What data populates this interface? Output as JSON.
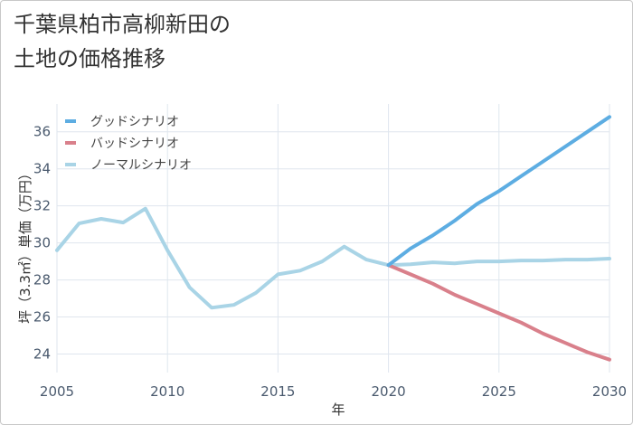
{
  "page": {
    "title_line1": "千葉県柏市高柳新田の",
    "title_line2": "土地の価格推移"
  },
  "chart_data": {
    "type": "line",
    "title": "千葉県柏市高柳新田の土地の価格推移",
    "xlabel": "年",
    "ylabel": "坪（3.3㎡）単価（万円）",
    "xlim": [
      2005,
      2030
    ],
    "ylim": [
      23,
      37.5
    ],
    "x_ticks": [
      2005,
      2010,
      2015,
      2020,
      2025,
      2030
    ],
    "y_ticks": [
      24,
      26,
      28,
      30,
      32,
      34,
      36
    ],
    "grid": true,
    "legend_position": "top-left",
    "series": [
      {
        "name": "グッドシナリオ",
        "color": "#5dade2",
        "x": [
          2020,
          2021,
          2022,
          2023,
          2024,
          2025,
          2026,
          2027,
          2028,
          2029,
          2030
        ],
        "values": [
          28.8,
          29.7,
          30.4,
          31.2,
          32.1,
          32.8,
          33.6,
          34.4,
          35.2,
          36.0,
          36.8
        ]
      },
      {
        "name": "バッドシナリオ",
        "color": "#d9808b",
        "x": [
          2020,
          2021,
          2022,
          2023,
          2024,
          2025,
          2026,
          2027,
          2028,
          2029,
          2030
        ],
        "values": [
          28.8,
          28.3,
          27.8,
          27.2,
          26.7,
          26.2,
          25.7,
          25.1,
          24.6,
          24.1,
          23.7
        ]
      },
      {
        "name": "ノーマルシナリオ",
        "color": "#a9d4e6",
        "x": [
          2005,
          2006,
          2007,
          2008,
          2009,
          2010,
          2011,
          2012,
          2013,
          2014,
          2015,
          2016,
          2017,
          2018,
          2019,
          2020,
          2021,
          2022,
          2023,
          2024,
          2025,
          2026,
          2027,
          2028,
          2029,
          2030
        ],
        "values": [
          29.6,
          31.05,
          31.3,
          31.1,
          31.85,
          29.6,
          27.6,
          26.5,
          26.65,
          27.3,
          28.3,
          28.5,
          29.0,
          29.8,
          29.1,
          28.8,
          28.85,
          28.95,
          28.9,
          29.0,
          29.0,
          29.05,
          29.05,
          29.1,
          29.1,
          29.15
        ]
      }
    ]
  }
}
